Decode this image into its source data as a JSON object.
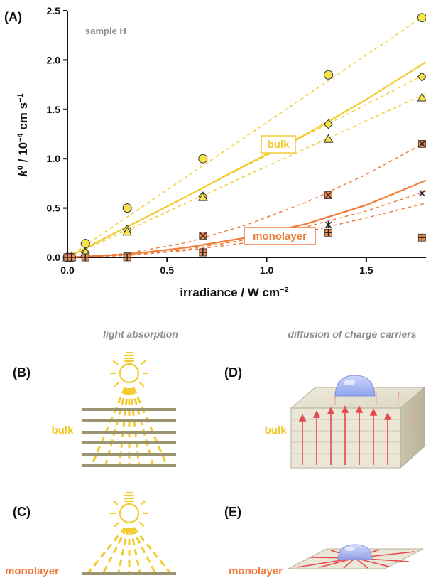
{
  "panel_a": {
    "letter": "(A)",
    "annotation": "sample H",
    "ylabel_main": "k",
    "ylabel_sup": "0",
    "ylabel_rest": " / 10",
    "ylabel_exp": "−4",
    "ylabel_unit": " cm s",
    "ylabel_unit_exp": "−1",
    "xlabel_main": "irradiance / W cm",
    "xlabel_exp": "−2",
    "bulk_label": "bulk",
    "monolayer_label": "monolayer"
  },
  "colors": {
    "bulk": "#f2cb2e",
    "bulk_marker_fill": "#f7e34a",
    "monolayer": "#f07a3a",
    "monolayer_marker_fill": "#f08a50",
    "grey_text": "#8c8c8c",
    "arrow_red": "#e5484d",
    "droplet": "#9fb1f2"
  },
  "chart_data": {
    "type": "scatter",
    "xlim": [
      0.0,
      1.8
    ],
    "ylim": [
      0.0,
      2.5
    ],
    "xticks": [
      "0.0",
      "0.5",
      "1.0",
      "1.5"
    ],
    "xtick_values": [
      0.0,
      0.5,
      1.0,
      1.5
    ],
    "yticks": [
      "0.0",
      "0.5",
      "1.0",
      "1.5",
      "2.0",
      "2.5"
    ],
    "ytick_values": [
      0.0,
      0.5,
      1.0,
      1.5,
      2.0,
      2.5
    ],
    "series": [
      {
        "group": "bulk",
        "marker": "circle",
        "x": [
          0.0,
          0.02,
          0.09,
          0.3,
          0.68,
          1.31,
          1.78
        ],
        "y": [
          0.0,
          0.0,
          0.14,
          0.5,
          1.0,
          1.85,
          2.43
        ]
      },
      {
        "group": "bulk",
        "marker": "diamond",
        "x": [
          0.0,
          0.02,
          0.09,
          0.3,
          0.68,
          1.31,
          1.78
        ],
        "y": [
          0.0,
          0.0,
          0.05,
          0.28,
          0.62,
          1.35,
          1.83
        ]
      },
      {
        "group": "bulk",
        "marker": "triangle",
        "x": [
          0.0,
          0.02,
          0.09,
          0.3,
          0.68,
          1.31,
          1.78
        ],
        "y": [
          0.0,
          0.0,
          0.05,
          0.26,
          0.61,
          1.2,
          1.62
        ]
      },
      {
        "group": "monolayer",
        "marker": "square-x",
        "x": [
          0.0,
          0.02,
          0.09,
          0.3,
          0.68,
          1.31,
          1.78
        ],
        "y": [
          0.0,
          0.0,
          0.0,
          0.01,
          0.22,
          0.63,
          1.15
        ]
      },
      {
        "group": "monolayer",
        "marker": "star",
        "x": [
          0.0,
          0.02,
          0.09,
          0.3,
          0.68,
          1.31,
          1.78
        ],
        "y": [
          0.0,
          0.0,
          0.0,
          0.0,
          0.06,
          0.33,
          0.65
        ]
      },
      {
        "group": "monolayer",
        "marker": "square-plus",
        "x": [
          0.0,
          0.02,
          0.09,
          0.3,
          0.68,
          1.31,
          1.78
        ],
        "y": [
          0.0,
          0.0,
          0.0,
          0.0,
          0.05,
          0.25,
          0.2
        ]
      }
    ],
    "fits": [
      {
        "group": "bulk",
        "style": "solid",
        "x": [
          0.0,
          0.3,
          0.6,
          0.9,
          1.2,
          1.5,
          1.8
        ],
        "y": [
          0.0,
          0.31,
          0.62,
          0.94,
          1.25,
          1.6,
          1.98
        ]
      },
      {
        "group": "bulk",
        "style": "dashed",
        "x": [
          0.0,
          1.8
        ],
        "y": [
          0.0,
          2.46
        ]
      },
      {
        "group": "bulk",
        "style": "dashed",
        "x": [
          0.0,
          1.8
        ],
        "y": [
          0.0,
          1.86
        ]
      },
      {
        "group": "bulk",
        "style": "dashed",
        "x": [
          0.0,
          1.8
        ],
        "y": [
          0.0,
          1.66
        ]
      },
      {
        "group": "monolayer",
        "style": "solid",
        "x": [
          0.0,
          0.3,
          0.6,
          0.9,
          1.2,
          1.5,
          1.8
        ],
        "y": [
          0.0,
          0.03,
          0.1,
          0.2,
          0.34,
          0.53,
          0.78
        ]
      },
      {
        "group": "monolayer",
        "style": "dashed",
        "x": [
          0.0,
          0.3,
          0.6,
          0.9,
          1.2,
          1.5,
          1.8
        ],
        "y": [
          0.0,
          0.04,
          0.15,
          0.33,
          0.56,
          0.84,
          1.17
        ]
      },
      {
        "group": "monolayer",
        "style": "dashed",
        "x": [
          0.0,
          0.3,
          0.6,
          0.9,
          1.2,
          1.5,
          1.8
        ],
        "y": [
          0.0,
          0.02,
          0.08,
          0.18,
          0.31,
          0.47,
          0.67
        ]
      },
      {
        "group": "monolayer",
        "style": "dashed",
        "x": [
          0.0,
          0.3,
          0.6,
          0.9,
          1.2,
          1.5,
          1.8
        ],
        "y": [
          0.0,
          0.02,
          0.07,
          0.15,
          0.26,
          0.4,
          0.55
        ]
      }
    ]
  },
  "panels": {
    "caption_left": "light absorption",
    "caption_right": "diffusion of charge carriers",
    "b_letter": "(B)",
    "c_letter": "(C)",
    "d_letter": "(D)",
    "e_letter": "(E)",
    "bulk_label": "bulk",
    "monolayer_label": "monolayer",
    "icons": [
      "lightbulb-icon",
      "water-droplet-icon",
      "layered-slab-icon",
      "single-sheet-icon"
    ]
  }
}
